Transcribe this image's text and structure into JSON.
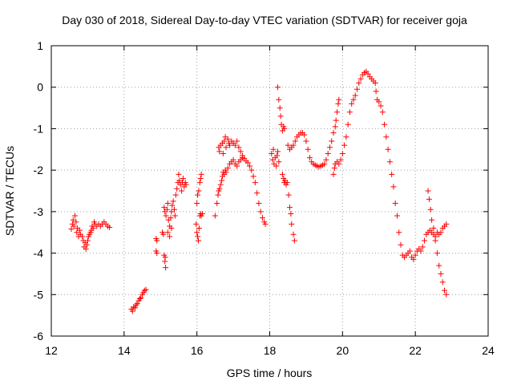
{
  "chart_data": {
    "type": "scatter",
    "title": "Day 030 of 2018, Sidereal Day-to-day VTEC variation (SDTVAR) for receiver goja",
    "xlabel": "GPS time / hours",
    "ylabel": "SDTVAR / TECUs",
    "xlim": [
      12,
      24
    ],
    "ylim": [
      -6,
      1
    ],
    "xticks": [
      "12",
      "14",
      "16",
      "18",
      "20",
      "22",
      "24"
    ],
    "yticks": [
      "1",
      "0",
      "-1",
      "-2",
      "-3",
      "-4",
      "-5",
      "-6"
    ],
    "grid": true,
    "marker": "+",
    "series": [
      {
        "name": "SDTVAR",
        "color": "#ff0000",
        "points": [
          [
            12.55,
            -3.42
          ],
          [
            12.58,
            -3.3
          ],
          [
            12.6,
            -3.2
          ],
          [
            12.62,
            -3.35
          ],
          [
            12.65,
            -3.1
          ],
          [
            12.68,
            -3.25
          ],
          [
            12.7,
            -3.5
          ],
          [
            12.72,
            -3.4
          ],
          [
            12.75,
            -3.6
          ],
          [
            12.78,
            -3.45
          ],
          [
            12.8,
            -3.55
          ],
          [
            12.85,
            -3.6
          ],
          [
            12.88,
            -3.7
          ],
          [
            12.9,
            -3.85
          ],
          [
            12.93,
            -3.75
          ],
          [
            12.95,
            -3.9
          ],
          [
            12.98,
            -3.8
          ],
          [
            13.0,
            -3.7
          ],
          [
            13.02,
            -3.6
          ],
          [
            13.05,
            -3.55
          ],
          [
            13.08,
            -3.5
          ],
          [
            13.1,
            -3.45
          ],
          [
            13.12,
            -3.35
          ],
          [
            13.15,
            -3.4
          ],
          [
            13.18,
            -3.25
          ],
          [
            13.2,
            -3.3
          ],
          [
            13.25,
            -3.35
          ],
          [
            13.3,
            -3.3
          ],
          [
            13.35,
            -3.35
          ],
          [
            13.4,
            -3.3
          ],
          [
            13.45,
            -3.25
          ],
          [
            13.5,
            -3.3
          ],
          [
            13.55,
            -3.35
          ],
          [
            13.6,
            -3.38
          ],
          [
            14.2,
            -5.35
          ],
          [
            14.23,
            -5.4
          ],
          [
            14.26,
            -5.3
          ],
          [
            14.3,
            -5.32
          ],
          [
            14.33,
            -5.25
          ],
          [
            14.36,
            -5.22
          ],
          [
            14.4,
            -5.15
          ],
          [
            14.43,
            -5.1
          ],
          [
            14.46,
            -5.08
          ],
          [
            14.5,
            -5.0
          ],
          [
            14.53,
            -4.95
          ],
          [
            14.56,
            -4.9
          ],
          [
            14.6,
            -4.88
          ],
          [
            14.88,
            -3.65
          ],
          [
            14.9,
            -3.7
          ],
          [
            14.88,
            -3.95
          ],
          [
            14.9,
            -4.0
          ],
          [
            15.05,
            -3.5
          ],
          [
            15.08,
            -3.55
          ],
          [
            15.1,
            -4.05
          ],
          [
            15.12,
            -4.2
          ],
          [
            15.14,
            -4.35
          ],
          [
            15.13,
            -4.1
          ],
          [
            15.1,
            -2.9
          ],
          [
            15.12,
            -3.0
          ],
          [
            15.15,
            -3.1
          ],
          [
            15.18,
            -2.95
          ],
          [
            15.2,
            -2.8
          ],
          [
            15.22,
            -3.2
          ],
          [
            15.25,
            -3.35
          ],
          [
            15.28,
            -3.15
          ],
          [
            15.3,
            -3.0
          ],
          [
            15.32,
            -2.85
          ],
          [
            15.35,
            -2.75
          ],
          [
            15.38,
            -2.95
          ],
          [
            15.4,
            -3.1
          ],
          [
            15.42,
            -2.6
          ],
          [
            15.45,
            -2.45
          ],
          [
            15.48,
            -2.3
          ],
          [
            15.5,
            -2.1
          ],
          [
            15.52,
            -2.25
          ],
          [
            15.55,
            -2.35
          ],
          [
            15.58,
            -2.5
          ],
          [
            15.6,
            -2.3
          ],
          [
            15.62,
            -2.2
          ],
          [
            15.65,
            -2.4
          ],
          [
            15.68,
            -2.3
          ],
          [
            15.7,
            -2.35
          ],
          [
            15.2,
            -3.5
          ],
          [
            15.25,
            -3.6
          ],
          [
            15.3,
            -3.4
          ],
          [
            15.98,
            -3.3
          ],
          [
            16.0,
            -3.5
          ],
          [
            16.02,
            -3.6
          ],
          [
            16.04,
            -3.7
          ],
          [
            16.06,
            -3.4
          ],
          [
            16.0,
            -2.8
          ],
          [
            16.02,
            -2.6
          ],
          [
            16.05,
            -2.5
          ],
          [
            16.08,
            -2.3
          ],
          [
            16.1,
            -2.2
          ],
          [
            16.12,
            -2.1
          ],
          [
            16.08,
            -3.1
          ],
          [
            16.1,
            -3.05
          ],
          [
            16.12,
            -3.1
          ],
          [
            16.15,
            -3.05
          ],
          [
            16.5,
            -3.1
          ],
          [
            16.55,
            -2.8
          ],
          [
            16.58,
            -2.6
          ],
          [
            16.6,
            -2.5
          ],
          [
            16.62,
            -2.45
          ],
          [
            16.65,
            -2.35
          ],
          [
            16.68,
            -2.25
          ],
          [
            16.7,
            -2.15
          ],
          [
            16.72,
            -2.05
          ],
          [
            16.75,
            -2.1
          ],
          [
            16.78,
            -2.0
          ],
          [
            16.8,
            -2.05
          ],
          [
            16.85,
            -1.95
          ],
          [
            16.9,
            -1.85
          ],
          [
            16.95,
            -1.8
          ],
          [
            17.0,
            -1.75
          ],
          [
            17.05,
            -1.85
          ],
          [
            17.1,
            -1.9
          ],
          [
            17.15,
            -1.8
          ],
          [
            17.2,
            -1.75
          ],
          [
            17.25,
            -1.7
          ],
          [
            17.3,
            -1.72
          ],
          [
            17.35,
            -1.78
          ],
          [
            17.4,
            -1.82
          ],
          [
            17.45,
            -1.9
          ],
          [
            17.5,
            -2.0
          ],
          [
            17.55,
            -2.15
          ],
          [
            17.6,
            -2.3
          ],
          [
            17.65,
            -2.55
          ],
          [
            17.7,
            -2.8
          ],
          [
            17.75,
            -3.0
          ],
          [
            17.8,
            -3.15
          ],
          [
            17.85,
            -3.25
          ],
          [
            17.88,
            -3.3
          ],
          [
            16.6,
            -1.45
          ],
          [
            16.62,
            -1.55
          ],
          [
            16.65,
            -1.4
          ],
          [
            16.7,
            -1.35
          ],
          [
            16.72,
            -1.6
          ],
          [
            16.75,
            -1.3
          ],
          [
            16.78,
            -1.2
          ],
          [
            16.8,
            -1.45
          ],
          [
            16.85,
            -1.25
          ],
          [
            16.88,
            -1.35
          ],
          [
            16.9,
            -1.4
          ],
          [
            16.95,
            -1.3
          ],
          [
            17.0,
            -1.35
          ],
          [
            17.05,
            -1.4
          ],
          [
            17.1,
            -1.3
          ],
          [
            17.15,
            -1.45
          ],
          [
            17.2,
            -1.55
          ],
          [
            17.25,
            -1.65
          ],
          [
            18.05,
            -1.6
          ],
          [
            18.08,
            -1.75
          ],
          [
            18.1,
            -1.5
          ],
          [
            18.12,
            -1.85
          ],
          [
            18.15,
            -1.7
          ],
          [
            18.18,
            -1.9
          ],
          [
            18.2,
            -1.65
          ],
          [
            18.22,
            -1.55
          ],
          [
            18.25,
            -1.8
          ],
          [
            18.22,
            0.0
          ],
          [
            18.25,
            -0.3
          ],
          [
            18.28,
            -0.5
          ],
          [
            18.3,
            -0.7
          ],
          [
            18.32,
            -0.9
          ],
          [
            18.35,
            -1.05
          ],
          [
            18.38,
            -0.95
          ],
          [
            18.4,
            -1.0
          ],
          [
            18.35,
            -2.1
          ],
          [
            18.38,
            -2.2
          ],
          [
            18.4,
            -2.3
          ],
          [
            18.42,
            -2.25
          ],
          [
            18.45,
            -2.35
          ],
          [
            18.48,
            -2.3
          ],
          [
            18.52,
            -2.6
          ],
          [
            18.55,
            -2.9
          ],
          [
            18.58,
            -3.05
          ],
          [
            18.6,
            -3.3
          ],
          [
            18.65,
            -3.55
          ],
          [
            18.68,
            -3.7
          ],
          [
            18.5,
            -1.4
          ],
          [
            18.55,
            -1.5
          ],
          [
            18.6,
            -1.45
          ],
          [
            18.65,
            -1.4
          ],
          [
            18.7,
            -1.3
          ],
          [
            18.75,
            -1.2
          ],
          [
            18.8,
            -1.15
          ],
          [
            18.85,
            -1.1
          ],
          [
            18.9,
            -1.1
          ],
          [
            18.95,
            -1.15
          ],
          [
            19.0,
            -1.3
          ],
          [
            19.05,
            -1.5
          ],
          [
            19.1,
            -1.7
          ],
          [
            19.15,
            -1.8
          ],
          [
            19.2,
            -1.85
          ],
          [
            19.25,
            -1.88
          ],
          [
            19.3,
            -1.9
          ],
          [
            19.35,
            -1.92
          ],
          [
            19.4,
            -1.9
          ],
          [
            19.45,
            -1.88
          ],
          [
            19.5,
            -1.85
          ],
          [
            19.55,
            -1.75
          ],
          [
            19.6,
            -1.6
          ],
          [
            19.65,
            -1.45
          ],
          [
            19.7,
            -1.3
          ],
          [
            19.75,
            -1.1
          ],
          [
            19.8,
            -0.95
          ],
          [
            19.82,
            -0.8
          ],
          [
            19.85,
            -0.6
          ],
          [
            19.88,
            -0.4
          ],
          [
            19.9,
            -0.3
          ],
          [
            19.75,
            -2.1
          ],
          [
            19.78,
            -1.95
          ],
          [
            19.8,
            -1.85
          ],
          [
            19.85,
            -1.8
          ],
          [
            19.9,
            -1.85
          ],
          [
            19.95,
            -1.75
          ],
          [
            20.0,
            -1.6
          ],
          [
            20.05,
            -1.4
          ],
          [
            20.1,
            -1.2
          ],
          [
            20.15,
            -0.9
          ],
          [
            20.2,
            -0.6
          ],
          [
            20.25,
            -0.4
          ],
          [
            20.3,
            -0.3
          ],
          [
            20.35,
            -0.2
          ],
          [
            20.4,
            -0.05
          ],
          [
            20.45,
            0.1
          ],
          [
            20.5,
            0.2
          ],
          [
            20.55,
            0.3
          ],
          [
            20.6,
            0.35
          ],
          [
            20.65,
            0.38
          ],
          [
            20.7,
            0.32
          ],
          [
            20.75,
            0.25
          ],
          [
            20.8,
            0.2
          ],
          [
            20.85,
            0.15
          ],
          [
            20.9,
            0.1
          ],
          [
            20.92,
            -0.1
          ],
          [
            20.95,
            -0.3
          ],
          [
            21.0,
            -0.35
          ],
          [
            21.05,
            -0.45
          ],
          [
            21.1,
            -0.6
          ],
          [
            21.15,
            -0.9
          ],
          [
            21.2,
            -1.2
          ],
          [
            21.25,
            -1.5
          ],
          [
            21.3,
            -1.8
          ],
          [
            21.35,
            -2.1
          ],
          [
            21.4,
            -2.4
          ],
          [
            21.45,
            -2.8
          ],
          [
            21.5,
            -3.1
          ],
          [
            21.55,
            -3.5
          ],
          [
            21.6,
            -3.8
          ],
          [
            21.65,
            -4.05
          ],
          [
            21.7,
            -4.1
          ],
          [
            21.75,
            -4.05
          ],
          [
            21.8,
            -4.0
          ],
          [
            21.85,
            -3.95
          ],
          [
            21.9,
            -4.1
          ],
          [
            21.95,
            -4.15
          ],
          [
            22.0,
            -4.05
          ],
          [
            22.05,
            -3.95
          ],
          [
            22.1,
            -3.9
          ],
          [
            22.15,
            -3.95
          ],
          [
            22.2,
            -3.85
          ],
          [
            22.25,
            -3.7
          ],
          [
            22.3,
            -3.55
          ],
          [
            22.35,
            -3.5
          ],
          [
            22.4,
            -3.45
          ],
          [
            22.45,
            -3.5
          ],
          [
            22.5,
            -3.55
          ],
          [
            22.55,
            -3.6
          ],
          [
            22.6,
            -3.5
          ],
          [
            22.65,
            -3.55
          ],
          [
            22.7,
            -3.5
          ],
          [
            22.75,
            -3.4
          ],
          [
            22.8,
            -3.35
          ],
          [
            22.85,
            -3.3
          ],
          [
            22.35,
            -2.5
          ],
          [
            22.38,
            -2.7
          ],
          [
            22.42,
            -2.95
          ],
          [
            22.45,
            -3.2
          ],
          [
            22.5,
            -3.4
          ],
          [
            22.55,
            -3.7
          ],
          [
            22.6,
            -4.0
          ],
          [
            22.65,
            -4.3
          ],
          [
            22.7,
            -4.5
          ],
          [
            22.75,
            -4.7
          ],
          [
            22.8,
            -4.9
          ],
          [
            22.85,
            -5.0
          ]
        ]
      }
    ]
  }
}
